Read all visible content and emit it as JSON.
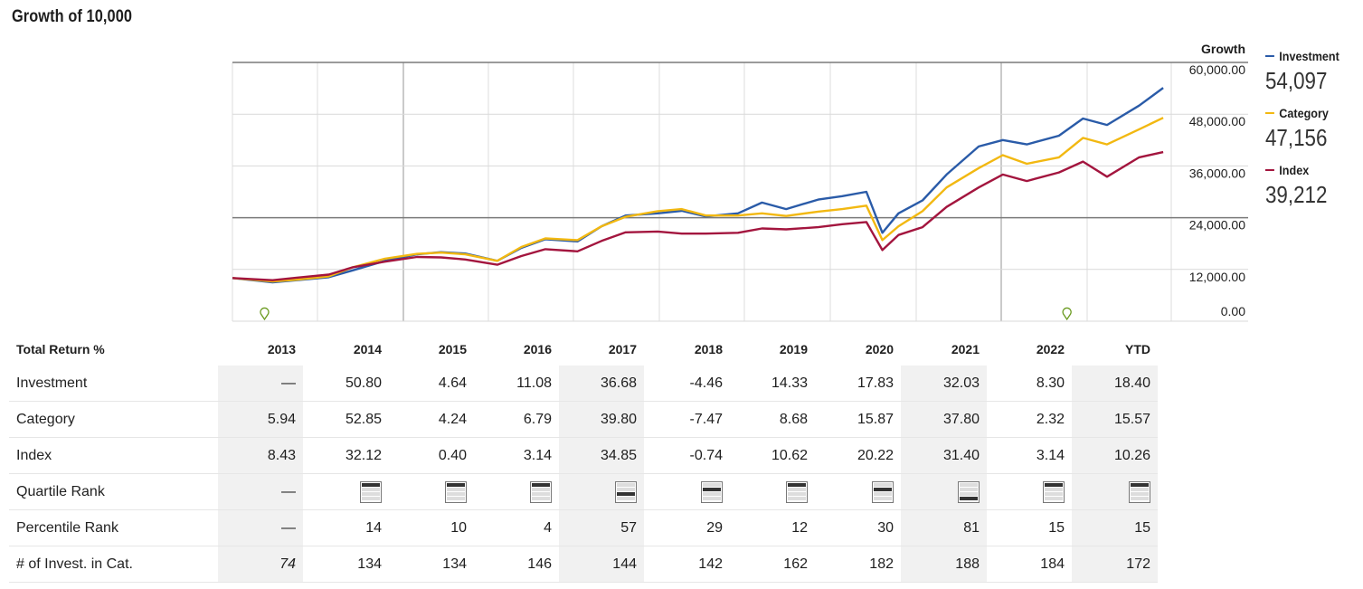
{
  "title": "Growth of 10,000",
  "legend": {
    "header": "Growth",
    "items": [
      {
        "name": "Investment",
        "value": "54,097",
        "color": "#2a5ba8"
      },
      {
        "name": "Category",
        "value": "47,156",
        "color": "#f2b811"
      },
      {
        "name": "Index",
        "value": "39,212",
        "color": "#a3153e"
      }
    ]
  },
  "chart_data": {
    "type": "line",
    "ylim": [
      0,
      60000
    ],
    "yticks": [
      "60,000.00",
      "48,000.00",
      "36,000.00",
      "24,000.00",
      "12,000.00",
      "0.00"
    ],
    "x_range": [
      2012.0,
      2023.7
    ],
    "x": [
      2012.0,
      2012.5,
      2012.8,
      2013.2,
      2013.5,
      2013.9,
      2014.3,
      2014.6,
      2014.9,
      2015.3,
      2015.6,
      2015.9,
      2016.3,
      2016.6,
      2016.9,
      2017.3,
      2017.6,
      2017.9,
      2018.3,
      2018.6,
      2018.9,
      2019.3,
      2019.6,
      2019.9,
      2020.1,
      2020.3,
      2020.6,
      2020.9,
      2021.3,
      2021.6,
      2021.9,
      2022.3,
      2022.6,
      2022.9,
      2023.3,
      2023.6
    ],
    "series": [
      {
        "name": "Investment",
        "color": "#2a5ba8",
        "values": [
          10000,
          9000,
          9500,
          10200,
          11800,
          14000,
          15500,
          16000,
          15700,
          14000,
          17000,
          19000,
          18500,
          22000,
          24500,
          25000,
          25600,
          24300,
          25000,
          27500,
          26000,
          28200,
          29000,
          30000,
          20500,
          25000,
          28000,
          34000,
          40500,
          42000,
          41000,
          43000,
          47000,
          45500,
          50000,
          54097
        ]
      },
      {
        "name": "Category",
        "color": "#f2b811",
        "values": [
          10000,
          9200,
          9600,
          10400,
          12500,
          14500,
          15600,
          15900,
          15500,
          14000,
          17200,
          19200,
          18800,
          22000,
          24200,
          25500,
          26000,
          24500,
          24500,
          25000,
          24400,
          25400,
          26000,
          26800,
          18800,
          22000,
          25500,
          31000,
          35500,
          38500,
          36500,
          38000,
          42500,
          41000,
          44500,
          47156
        ]
      },
      {
        "name": "Index",
        "color": "#a3153e",
        "values": [
          10000,
          9500,
          10100,
          10800,
          12500,
          13800,
          14900,
          14800,
          14300,
          13100,
          15100,
          16700,
          16200,
          18600,
          20600,
          20800,
          20300,
          20300,
          20500,
          21500,
          21300,
          21800,
          22500,
          23000,
          16500,
          20000,
          21800,
          26500,
          31000,
          34000,
          32500,
          34500,
          37000,
          33500,
          38000,
          39212
        ]
      }
    ],
    "markers": [
      2012.4,
      2022.4
    ]
  },
  "table": {
    "header_label": "Total Return %",
    "years": [
      "2013",
      "2014",
      "2015",
      "2016",
      "2017",
      "2018",
      "2019",
      "2020",
      "2021",
      "2022",
      "YTD"
    ],
    "rows": [
      {
        "label": "Investment",
        "cells": [
          "—",
          "50.80",
          "4.64",
          "11.08",
          "36.68",
          "-4.46",
          "14.33",
          "17.83",
          "32.03",
          "8.30",
          "18.40"
        ]
      },
      {
        "label": "Category",
        "cells": [
          "5.94",
          "52.85",
          "4.24",
          "6.79",
          "39.80",
          "-7.47",
          "8.68",
          "15.87",
          "37.80",
          "2.32",
          "15.57"
        ]
      },
      {
        "label": "Index",
        "cells": [
          "8.43",
          "32.12",
          "0.40",
          "3.14",
          "34.85",
          "-0.74",
          "10.62",
          "20.22",
          "31.40",
          "3.14",
          "10.26"
        ]
      },
      {
        "label": "Quartile Rank",
        "cells": [
          "—",
          1,
          1,
          1,
          3,
          2,
          1,
          2,
          4,
          1,
          1
        ]
      },
      {
        "label": "Percentile Rank",
        "cells": [
          "—",
          "14",
          "10",
          "4",
          "57",
          "29",
          "12",
          "30",
          "81",
          "15",
          "15"
        ]
      },
      {
        "label": "# of Invest. in Cat.",
        "cells": [
          "74",
          "134",
          "134",
          "146",
          "144",
          "142",
          "162",
          "182",
          "188",
          "184",
          "172"
        ]
      }
    ]
  }
}
